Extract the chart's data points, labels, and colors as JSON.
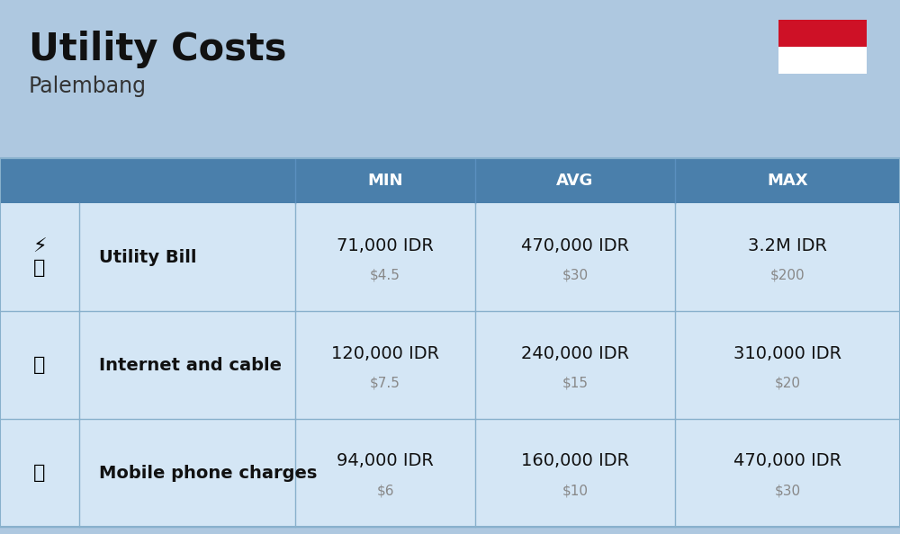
{
  "title": "Utility Costs",
  "subtitle": "Palembang",
  "background_color": "#aec8e0",
  "table_bg_light": "#d4e6f5",
  "header_bg": "#4a7fab",
  "header_text_color": "#ffffff",
  "row_separator_color": "#88b0cc",
  "flag_red": "#ce1126",
  "flag_white": "#ffffff",
  "col_headers": [
    "MIN",
    "AVG",
    "MAX"
  ],
  "data": [
    {
      "name": "Utility Bill",
      "min_idr": "71,000 IDR",
      "min_usd": "$4.5",
      "avg_idr": "470,000 IDR",
      "avg_usd": "$30",
      "max_idr": "3.2M IDR",
      "max_usd": "$200"
    },
    {
      "name": "Internet and cable",
      "min_idr": "120,000 IDR",
      "min_usd": "$7.5",
      "avg_idr": "240,000 IDR",
      "avg_usd": "$15",
      "max_idr": "310,000 IDR",
      "max_usd": "$20"
    },
    {
      "name": "Mobile phone charges",
      "min_idr": "94,000 IDR",
      "min_usd": "$6",
      "avg_idr": "160,000 IDR",
      "avg_usd": "$10",
      "max_idr": "470,000 IDR",
      "max_usd": "$30"
    }
  ],
  "title_fontsize": 30,
  "subtitle_fontsize": 17,
  "header_fontsize": 13,
  "cell_fontsize_main": 14,
  "cell_fontsize_sub": 11,
  "label_fontsize": 14
}
